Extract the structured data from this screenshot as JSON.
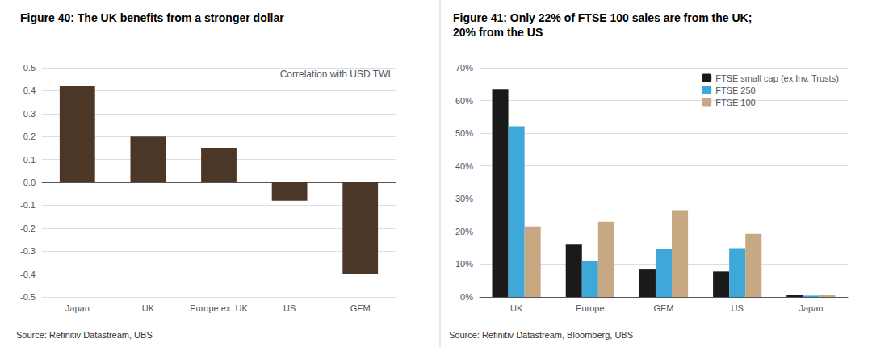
{
  "chart_data": [
    {
      "type": "bar",
      "title": "Figure 40: The UK benefits from a stronger dollar",
      "annotation": "Correlation with USD TWI",
      "source": "Source: Refinitiv Datastream, UBS",
      "categories": [
        "Japan",
        "UK",
        "Europe ex. UK",
        "US",
        "GEM"
      ],
      "values": [
        0.42,
        0.2,
        0.15,
        -0.08,
        -0.4
      ],
      "color": "#4a3728",
      "ylim": [
        -0.5,
        0.5
      ],
      "yticks": [
        -0.5,
        -0.4,
        -0.3,
        -0.2,
        -0.1,
        {
          "value": 0,
          "label": "0.0"
        },
        0.1,
        0.2,
        0.3,
        0.4,
        0.5
      ],
      "grid": true
    },
    {
      "type": "bar",
      "title": "Figure 41: Only 22% of FTSE 100 sales are from the UK;\n20% from the US",
      "source": "Source: Refinitiv Datastream, Bloomberg, UBS",
      "categories": [
        "UK",
        "Europe",
        "GEM",
        "US",
        "Japan"
      ],
      "series": [
        {
          "name": "FTSE small cap (ex Inv. Trusts)",
          "color": "#1a1a1a",
          "values": [
            0.635,
            0.162,
            0.086,
            0.078,
            0.005
          ]
        },
        {
          "name": "FTSE 250",
          "color": "#3ea8d8",
          "values": [
            0.521,
            0.11,
            0.148,
            0.149,
            0.004
          ]
        },
        {
          "name": "FTSE 100",
          "color": "#c8a882",
          "values": [
            0.215,
            0.23,
            0.265,
            0.193,
            0.007
          ]
        }
      ],
      "ylim": [
        0,
        0.7
      ],
      "yticks": [
        {
          "value": 0,
          "label": "0%"
        },
        {
          "value": 0.1,
          "label": "10%"
        },
        {
          "value": 0.2,
          "label": "20%"
        },
        {
          "value": 0.3,
          "label": "30%"
        },
        {
          "value": 0.4,
          "label": "40%"
        },
        {
          "value": 0.5,
          "label": "50%"
        },
        {
          "value": 0.6,
          "label": "60%"
        },
        {
          "value": 0.7,
          "label": "70%"
        }
      ],
      "grid": true,
      "legend": "upper right"
    }
  ]
}
